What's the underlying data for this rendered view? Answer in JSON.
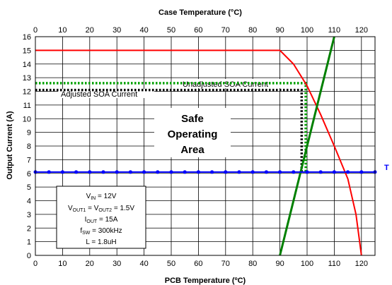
{
  "chart_data": {
    "type": "line",
    "top_xlabel": "Case Temperature (°C)",
    "xlabel": "PCB Temperature (ºC)",
    "ylabel": "Output Current (A)",
    "xlim": [
      0,
      125
    ],
    "ylim": [
      0,
      16
    ],
    "xticks": [
      "0",
      "10",
      "20",
      "30",
      "40",
      "50",
      "60",
      "70",
      "80",
      "90",
      "100",
      "110",
      "120"
    ],
    "yticks": [
      "0",
      "1",
      "2",
      "3",
      "4",
      "5",
      "6",
      "7",
      "8",
      "9",
      "10",
      "11",
      "12",
      "13",
      "14",
      "15",
      "16"
    ],
    "grid": true,
    "colors": {
      "red": "#ff0000",
      "green": "#008000",
      "blue": "#0000ff",
      "dotted_green": "#00a000",
      "black": "#000000"
    },
    "series": [
      {
        "name": "",
        "color": "#ff0000",
        "style": "solid",
        "x": [
          0,
          90,
          95,
          100,
          105,
          110,
          115,
          118,
          120
        ],
        "y": [
          15,
          15,
          14,
          12.4,
          10.3,
          8,
          5.6,
          3,
          0
        ]
      },
      {
        "name": "",
        "color": "#008000",
        "style": "solid",
        "x": [
          90,
          110
        ],
        "y": [
          0,
          16
        ]
      },
      {
        "name": "",
        "color": "#0000ff",
        "style": "solid-markers",
        "x": [
          0,
          5,
          10,
          15,
          20,
          25,
          30,
          35,
          40,
          45,
          50,
          55,
          60,
          65,
          70,
          75,
          80,
          85,
          90,
          95,
          100,
          105,
          110,
          115,
          120,
          125
        ],
        "y": [
          6.1,
          6.1,
          6.1,
          6.1,
          6.1,
          6.1,
          6.1,
          6.1,
          6.1,
          6.1,
          6.1,
          6.1,
          6.1,
          6.1,
          6.1,
          6.1,
          6.1,
          6.1,
          6.1,
          6.1,
          6.1,
          6.1,
          6.1,
          6.1,
          6.1,
          6.1
        ]
      },
      {
        "name": "Unadjusted SOA Current",
        "color": "#00a000",
        "style": "dotted",
        "x": [
          0,
          99.5,
          99.5
        ],
        "y": [
          12.6,
          12.6,
          6.1
        ]
      },
      {
        "name": "Adjusted SOA Current",
        "color": "#000000",
        "style": "dotted",
        "x": [
          0,
          98,
          98
        ],
        "y": [
          12.1,
          12.1,
          6.1
        ]
      }
    ],
    "annotations": {
      "unadjusted": "Unadjusted SOA Current",
      "adjusted": "Adjusted SOA Current",
      "safe_1": "Safe",
      "safe_2": "Operating",
      "safe_3": "Area",
      "right_edge": "T"
    },
    "conditions": {
      "vin_main": "V",
      "vin_sub": "IN",
      "vin_val": " = 12V",
      "vout_main1": "V",
      "vout_sub1": "OUT1",
      "vout_mid": " = V",
      "vout_sub2": "OUT2",
      "vout_val": " = 1.5V",
      "iout_main": "I",
      "iout_sub": "OUT",
      "iout_val": " = 15A",
      "fsw_main": "f",
      "fsw_sub": "SW",
      "fsw_val": " = 300kHz",
      "l_text": "L = 1.8uH"
    }
  }
}
